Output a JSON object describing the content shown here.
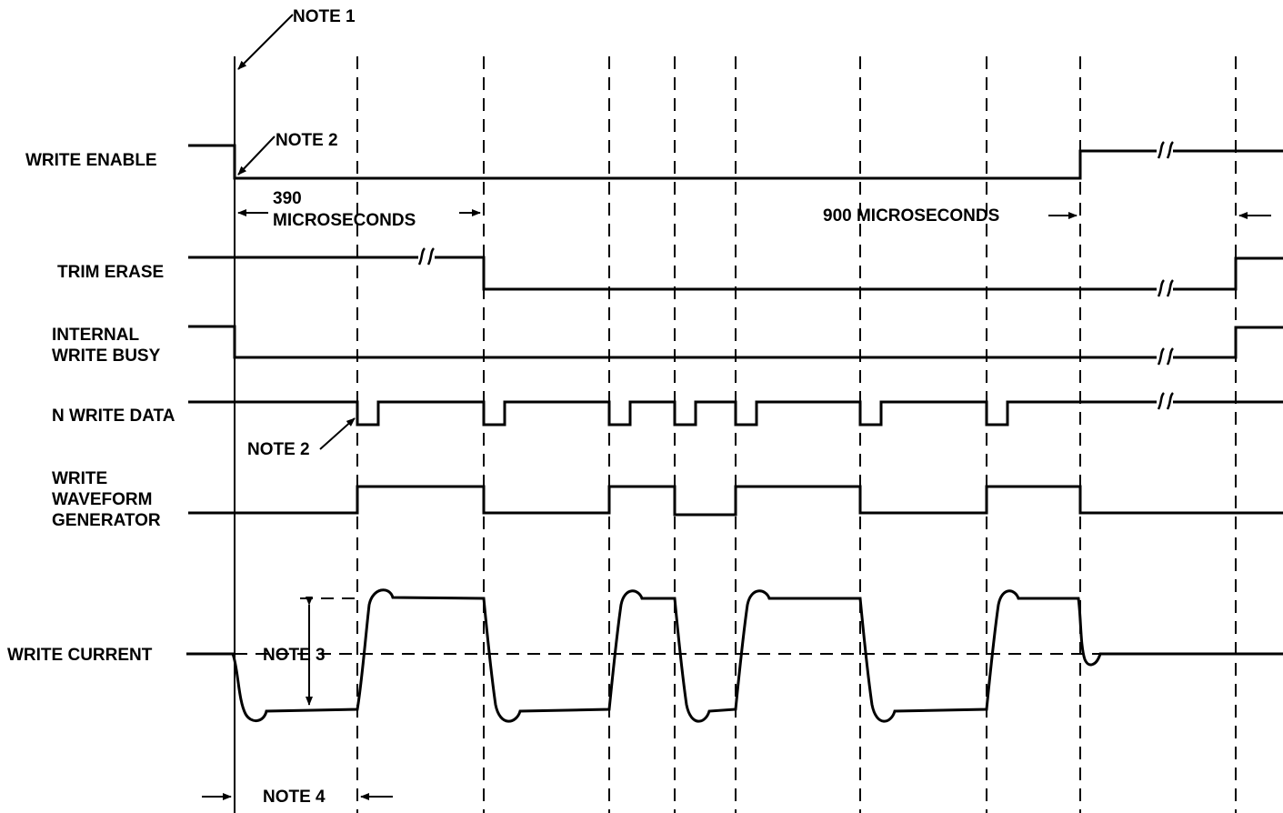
{
  "signals": {
    "write_enable": "WRITE ENABLE",
    "trim_erase": "TRIM ERASE",
    "internal_write_busy_1": "INTERNAL",
    "internal_write_busy_2": "WRITE BUSY",
    "n_write_data": "N WRITE DATA",
    "write_waveform_1": "WRITE",
    "write_waveform_2": "WAVEFORM",
    "write_waveform_3": "GENERATOR",
    "write_current": "WRITE CURRENT"
  },
  "notes": {
    "note1": "NOTE 1",
    "note2_top": "NOTE 2",
    "note2_bottom": "NOTE 2",
    "note3": "NOTE 3",
    "note4": "NOTE 4"
  },
  "timings": {
    "t390_a": "390",
    "t390_b": "MICROSECONDS",
    "t900": "900 MICROSECONDS"
  }
}
